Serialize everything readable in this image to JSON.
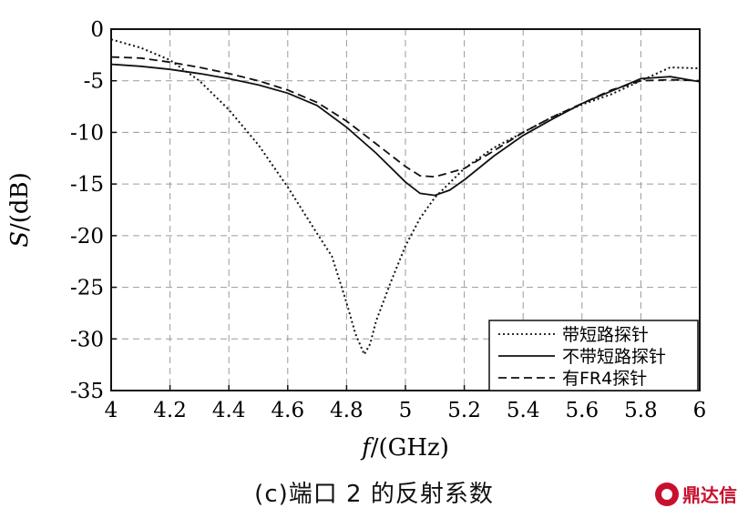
{
  "chart_data": {
    "type": "line",
    "xlabel_italic": "f",
    "xlabel_rest": "/(GHz)",
    "ylabel_italic": "S",
    "ylabel_rest": "/(dB)",
    "xlim": [
      4,
      6
    ],
    "ylim": [
      -35,
      0
    ],
    "xticks": [
      4,
      4.2,
      4.4,
      4.6,
      4.8,
      5,
      5.2,
      5.4,
      5.6,
      5.8,
      6
    ],
    "xtick_labels": [
      "4",
      "4.2",
      "4.4",
      "4.6",
      "4.8",
      "5",
      "5.2",
      "5.4",
      "5.6",
      "5.8",
      "6"
    ],
    "yticks": [
      0,
      -5,
      -10,
      -15,
      -20,
      -25,
      -30,
      -35
    ],
    "ytick_labels": [
      "0",
      "-5",
      "-10",
      "-15",
      "-20",
      "-25",
      "-30",
      "-35"
    ],
    "grid": true,
    "legend_position": "bottom-right",
    "series": [
      {
        "name": "带短路探针",
        "style": "dotted",
        "points": [
          [
            4.0,
            -1.0
          ],
          [
            4.1,
            -1.8
          ],
          [
            4.2,
            -3.0
          ],
          [
            4.3,
            -5.0
          ],
          [
            4.4,
            -7.8
          ],
          [
            4.5,
            -11.2
          ],
          [
            4.6,
            -15.3
          ],
          [
            4.7,
            -19.8
          ],
          [
            4.75,
            -22.0
          ],
          [
            4.8,
            -26.5
          ],
          [
            4.83,
            -29.5
          ],
          [
            4.86,
            -31.5
          ],
          [
            4.88,
            -30.5
          ],
          [
            4.9,
            -28.3
          ],
          [
            4.95,
            -24.5
          ],
          [
            5.0,
            -21.0
          ],
          [
            5.05,
            -18.3
          ],
          [
            5.1,
            -16.3
          ],
          [
            5.2,
            -13.5
          ],
          [
            5.3,
            -11.5
          ],
          [
            5.4,
            -10.0
          ],
          [
            5.5,
            -8.5
          ],
          [
            5.6,
            -7.3
          ],
          [
            5.7,
            -6.3
          ],
          [
            5.8,
            -5.0
          ],
          [
            5.9,
            -3.7
          ],
          [
            6.0,
            -3.8
          ]
        ]
      },
      {
        "name": "不带短路探针",
        "style": "solid",
        "points": [
          [
            4.0,
            -3.4
          ],
          [
            4.1,
            -3.6
          ],
          [
            4.2,
            -3.9
          ],
          [
            4.3,
            -4.3
          ],
          [
            4.4,
            -4.8
          ],
          [
            4.5,
            -5.4
          ],
          [
            4.6,
            -6.2
          ],
          [
            4.7,
            -7.4
          ],
          [
            4.8,
            -9.5
          ],
          [
            4.9,
            -12.0
          ],
          [
            5.0,
            -14.8
          ],
          [
            5.05,
            -15.9
          ],
          [
            5.1,
            -16.1
          ],
          [
            5.15,
            -15.6
          ],
          [
            5.2,
            -14.6
          ],
          [
            5.3,
            -12.3
          ],
          [
            5.4,
            -10.3
          ],
          [
            5.5,
            -8.7
          ],
          [
            5.6,
            -7.2
          ],
          [
            5.7,
            -6.0
          ],
          [
            5.8,
            -4.8
          ],
          [
            5.9,
            -4.6
          ],
          [
            6.0,
            -5.1
          ]
        ]
      },
      {
        "name": "有FR4探针",
        "style": "dashed",
        "points": [
          [
            4.0,
            -2.7
          ],
          [
            4.1,
            -2.8
          ],
          [
            4.2,
            -3.2
          ],
          [
            4.3,
            -3.7
          ],
          [
            4.4,
            -4.3
          ],
          [
            4.5,
            -5.0
          ],
          [
            4.6,
            -5.9
          ],
          [
            4.7,
            -7.1
          ],
          [
            4.8,
            -8.9
          ],
          [
            4.9,
            -11.1
          ],
          [
            5.0,
            -13.3
          ],
          [
            5.05,
            -14.2
          ],
          [
            5.1,
            -14.3
          ],
          [
            5.2,
            -13.5
          ],
          [
            5.3,
            -11.8
          ],
          [
            5.4,
            -10.0
          ],
          [
            5.5,
            -8.5
          ],
          [
            5.6,
            -7.2
          ],
          [
            5.7,
            -5.9
          ],
          [
            5.8,
            -5.0
          ],
          [
            5.9,
            -4.9
          ],
          [
            6.0,
            -5.0
          ]
        ]
      }
    ]
  },
  "caption": "(c)端口 2 的反射系数",
  "watermark": "鼎达信"
}
